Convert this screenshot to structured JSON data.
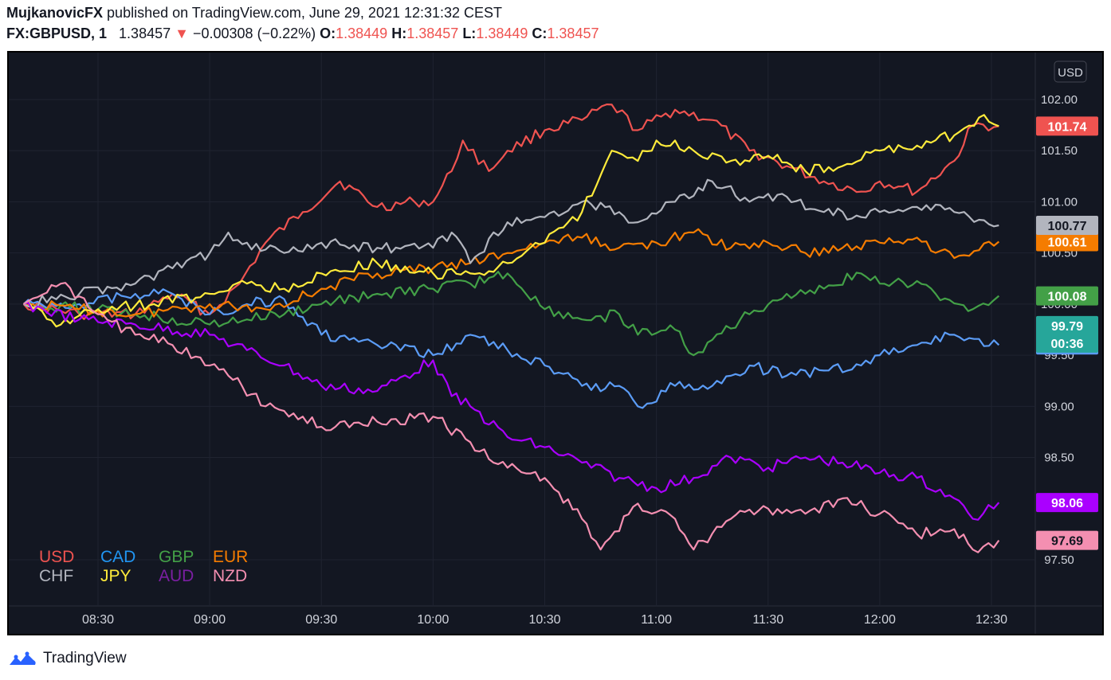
{
  "header": {
    "author": "MujkanovicFX",
    "published_text": "published on TradingView.com, June 29, 2021 12:31:32 CEST",
    "symbol": "FX:GBPUSD, 1",
    "price": "1.38457",
    "change": "−0.00308 (−0.22%)",
    "o_label": "O:",
    "o_value": "1.38449",
    "h_label": "H:",
    "h_value": "1.38457",
    "l_label": "L:",
    "l_value": "1.38449",
    "c_label": "C:",
    "c_value": "1.38457",
    "down_arrow_icon": "triangle-down-icon",
    "accent_red": "#ef5350"
  },
  "footer": {
    "brand": "TradingView",
    "logo_icon": "tradingview-cloud-icon",
    "logo_color": "#2962ff"
  },
  "chart_data": {
    "type": "line",
    "currency_label": "USD",
    "grid": true,
    "background": "#131722",
    "x_ticks": [
      "08:30",
      "09:00",
      "09:30",
      "10:00",
      "10:30",
      "11:00",
      "11:30",
      "12:00",
      "12:30"
    ],
    "y_ticks": [
      "102.00",
      "101.50",
      "101.00",
      "100.50",
      "100.00",
      "99.50",
      "99.00",
      "98.50",
      "97.50"
    ],
    "countdown": "00:36",
    "legend_placement": "bottom-left",
    "series": [
      {
        "name": "USD",
        "color": "#ef5350",
        "last_label": "101.74",
        "points": [
          [
            "08:10",
            100.0
          ],
          [
            "08:25",
            99.9
          ],
          [
            "08:40",
            99.9
          ],
          [
            "08:50",
            100.1
          ],
          [
            "09:00",
            99.9
          ],
          [
            "09:08",
            100.2
          ],
          [
            "09:15",
            100.6
          ],
          [
            "09:25",
            100.9
          ],
          [
            "09:35",
            101.2
          ],
          [
            "09:45",
            100.95
          ],
          [
            "09:55",
            101.0
          ],
          [
            "10:00",
            101.0
          ],
          [
            "10:05",
            101.3
          ],
          [
            "10:08",
            101.6
          ],
          [
            "10:15",
            101.3
          ],
          [
            "10:20",
            101.5
          ],
          [
            "10:30",
            101.7
          ],
          [
            "10:40",
            101.8
          ],
          [
            "10:48",
            101.95
          ],
          [
            "10:55",
            101.7
          ],
          [
            "11:05",
            101.9
          ],
          [
            "11:15",
            101.8
          ],
          [
            "11:25",
            101.5
          ],
          [
            "11:35",
            101.35
          ],
          [
            "11:45",
            101.2
          ],
          [
            "11:55",
            101.1
          ],
          [
            "12:00",
            101.2
          ],
          [
            "12:05",
            101.15
          ],
          [
            "12:10",
            101.1
          ],
          [
            "12:20",
            101.4
          ],
          [
            "12:25",
            101.75
          ],
          [
            "12:32",
            101.74
          ]
        ]
      },
      {
        "name": "CAD",
        "color": "#5b9cf6",
        "last_label": "99.60",
        "points": [
          [
            "08:10",
            100.0
          ],
          [
            "08:25",
            100.0
          ],
          [
            "08:40",
            100.1
          ],
          [
            "08:50",
            100.1
          ],
          [
            "09:00",
            99.9
          ],
          [
            "09:10",
            100.0
          ],
          [
            "09:20",
            100.05
          ],
          [
            "09:30",
            99.7
          ],
          [
            "09:45",
            99.6
          ],
          [
            "10:00",
            99.5
          ],
          [
            "10:10",
            99.7
          ],
          [
            "10:20",
            99.55
          ],
          [
            "10:30",
            99.4
          ],
          [
            "10:40",
            99.2
          ],
          [
            "10:50",
            99.2
          ],
          [
            "10:55",
            99.0
          ],
          [
            "11:05",
            99.2
          ],
          [
            "11:15",
            99.2
          ],
          [
            "11:25",
            99.4
          ],
          [
            "11:35",
            99.3
          ],
          [
            "11:45",
            99.35
          ],
          [
            "11:55",
            99.4
          ],
          [
            "12:00",
            99.5
          ],
          [
            "12:10",
            99.6
          ],
          [
            "12:20",
            99.7
          ],
          [
            "12:32",
            99.6
          ]
        ]
      },
      {
        "name": "GBP",
        "color": "#43a047",
        "last_label": "100.08",
        "points": [
          [
            "08:10",
            100.0
          ],
          [
            "08:30",
            99.95
          ],
          [
            "08:40",
            99.9
          ],
          [
            "09:00",
            99.8
          ],
          [
            "09:10",
            99.85
          ],
          [
            "09:20",
            99.9
          ],
          [
            "09:30",
            100.0
          ],
          [
            "09:45",
            100.1
          ],
          [
            "10:00",
            100.15
          ],
          [
            "10:10",
            100.2
          ],
          [
            "10:20",
            100.3
          ],
          [
            "10:30",
            99.95
          ],
          [
            "10:40",
            99.85
          ],
          [
            "10:50",
            99.9
          ],
          [
            "10:55",
            99.7
          ],
          [
            "11:05",
            99.75
          ],
          [
            "11:10",
            99.5
          ],
          [
            "11:15",
            99.65
          ],
          [
            "11:25",
            99.9
          ],
          [
            "11:35",
            100.1
          ],
          [
            "11:45",
            100.15
          ],
          [
            "11:55",
            100.3
          ],
          [
            "12:00",
            100.2
          ],
          [
            "12:05",
            100.25
          ],
          [
            "12:15",
            100.1
          ],
          [
            "12:25",
            99.95
          ],
          [
            "12:32",
            100.08
          ]
        ]
      },
      {
        "name": "EUR",
        "color": "#f57c00",
        "last_label": "100.61",
        "points": [
          [
            "08:10",
            100.0
          ],
          [
            "08:25",
            99.95
          ],
          [
            "08:40",
            99.9
          ],
          [
            "09:00",
            100.0
          ],
          [
            "09:15",
            99.95
          ],
          [
            "09:30",
            100.15
          ],
          [
            "09:45",
            100.3
          ],
          [
            "10:00",
            100.35
          ],
          [
            "10:10",
            100.4
          ],
          [
            "10:20",
            100.5
          ],
          [
            "10:30",
            100.6
          ],
          [
            "10:40",
            100.65
          ],
          [
            "10:50",
            100.55
          ],
          [
            "11:00",
            100.6
          ],
          [
            "11:10",
            100.7
          ],
          [
            "11:20",
            100.55
          ],
          [
            "11:30",
            100.6
          ],
          [
            "11:40",
            100.5
          ],
          [
            "11:50",
            100.55
          ],
          [
            "12:00",
            100.6
          ],
          [
            "12:10",
            100.65
          ],
          [
            "12:20",
            100.45
          ],
          [
            "12:32",
            100.61
          ]
        ]
      },
      {
        "name": "CHF",
        "color": "#b2b5be",
        "last_label": "100.77",
        "points": [
          [
            "08:10",
            100.0
          ],
          [
            "08:25",
            100.1
          ],
          [
            "08:40",
            100.2
          ],
          [
            "08:50",
            100.35
          ],
          [
            "09:00",
            100.5
          ],
          [
            "09:05",
            100.7
          ],
          [
            "09:10",
            100.6
          ],
          [
            "09:20",
            100.5
          ],
          [
            "09:30",
            100.6
          ],
          [
            "09:45",
            100.55
          ],
          [
            "10:00",
            100.55
          ],
          [
            "10:05",
            100.7
          ],
          [
            "10:10",
            100.4
          ],
          [
            "10:20",
            100.8
          ],
          [
            "10:30",
            100.85
          ],
          [
            "10:40",
            101.0
          ],
          [
            "10:50",
            100.9
          ],
          [
            "10:55",
            100.8
          ],
          [
            "11:05",
            101.0
          ],
          [
            "11:15",
            101.2
          ],
          [
            "11:25",
            101.0
          ],
          [
            "11:35",
            101.05
          ],
          [
            "11:45",
            100.9
          ],
          [
            "11:55",
            100.85
          ],
          [
            "12:00",
            100.9
          ],
          [
            "12:10",
            100.95
          ],
          [
            "12:20",
            100.9
          ],
          [
            "12:32",
            100.77
          ]
        ]
      },
      {
        "name": "JPY",
        "color": "#ffeb3b",
        "last_label": "",
        "points": [
          [
            "08:10",
            100.0
          ],
          [
            "08:20",
            99.8
          ],
          [
            "08:30",
            99.95
          ],
          [
            "08:45",
            100.0
          ],
          [
            "09:00",
            100.1
          ],
          [
            "09:10",
            100.2
          ],
          [
            "09:20",
            100.15
          ],
          [
            "09:30",
            100.3
          ],
          [
            "09:45",
            100.4
          ],
          [
            "10:00",
            100.3
          ],
          [
            "10:10",
            100.3
          ],
          [
            "10:20",
            100.4
          ],
          [
            "10:30",
            100.6
          ],
          [
            "10:40",
            100.9
          ],
          [
            "10:48",
            101.5
          ],
          [
            "10:55",
            101.4
          ],
          [
            "11:00",
            101.6
          ],
          [
            "11:10",
            101.5
          ],
          [
            "11:20",
            101.4
          ],
          [
            "11:30",
            101.45
          ],
          [
            "11:40",
            101.3
          ],
          [
            "11:50",
            101.35
          ],
          [
            "12:00",
            101.5
          ],
          [
            "12:10",
            101.55
          ],
          [
            "12:20",
            101.65
          ],
          [
            "12:28",
            101.85
          ],
          [
            "12:32",
            101.74
          ]
        ]
      },
      {
        "name": "AUD",
        "color": "#aa00ff",
        "last_label": "98.06",
        "points": [
          [
            "08:10",
            100.0
          ],
          [
            "08:25",
            99.85
          ],
          [
            "08:40",
            99.8
          ],
          [
            "09:00",
            99.7
          ],
          [
            "09:10",
            99.55
          ],
          [
            "09:20",
            99.4
          ],
          [
            "09:30",
            99.2
          ],
          [
            "09:45",
            99.15
          ],
          [
            "10:00",
            99.45
          ],
          [
            "10:05",
            99.1
          ],
          [
            "10:10",
            99.0
          ],
          [
            "10:20",
            98.7
          ],
          [
            "10:30",
            98.6
          ],
          [
            "10:40",
            98.45
          ],
          [
            "10:50",
            98.3
          ],
          [
            "11:00",
            98.2
          ],
          [
            "11:10",
            98.3
          ],
          [
            "11:20",
            98.5
          ],
          [
            "11:30",
            98.4
          ],
          [
            "11:40",
            98.5
          ],
          [
            "11:50",
            98.45
          ],
          [
            "12:00",
            98.35
          ],
          [
            "12:10",
            98.3
          ],
          [
            "12:20",
            98.1
          ],
          [
            "12:25",
            97.9
          ],
          [
            "12:32",
            98.06
          ]
        ]
      },
      {
        "name": "NZD",
        "color": "#f48fb1",
        "last_label": "97.69",
        "points": [
          [
            "08:10",
            100.0
          ],
          [
            "08:20",
            100.2
          ],
          [
            "08:30",
            99.9
          ],
          [
            "08:40",
            99.7
          ],
          [
            "08:50",
            99.6
          ],
          [
            "09:00",
            99.4
          ],
          [
            "09:05",
            99.3
          ],
          [
            "09:15",
            99.0
          ],
          [
            "09:25",
            98.9
          ],
          [
            "09:30",
            98.8
          ],
          [
            "09:45",
            98.85
          ],
          [
            "10:00",
            98.9
          ],
          [
            "10:10",
            98.65
          ],
          [
            "10:20",
            98.4
          ],
          [
            "10:30",
            98.3
          ],
          [
            "10:40",
            97.9
          ],
          [
            "10:45",
            97.6
          ],
          [
            "10:55",
            98.05
          ],
          [
            "11:05",
            97.9
          ],
          [
            "11:10",
            97.6
          ],
          [
            "11:20",
            97.9
          ],
          [
            "11:30",
            98.0
          ],
          [
            "11:40",
            97.95
          ],
          [
            "11:50",
            98.1
          ],
          [
            "12:00",
            97.95
          ],
          [
            "12:10",
            97.75
          ],
          [
            "12:20",
            97.8
          ],
          [
            "12:25",
            97.6
          ],
          [
            "12:32",
            97.69
          ]
        ]
      }
    ],
    "extra_labels": [
      {
        "text": "99.79",
        "color": "#26a69a"
      }
    ],
    "legend_rows": [
      [
        "USD",
        "CAD",
        "GBP",
        "EUR"
      ],
      [
        "CHF",
        "JPY",
        "AUD",
        "NZD"
      ]
    ],
    "legend_colors": {
      "USD": "#ef5350",
      "CAD": "#2196f3",
      "GBP": "#43a047",
      "EUR": "#f57c00",
      "CHF": "#b2b5be",
      "JPY": "#ffeb3b",
      "AUD": "#7b1fa2",
      "NZD": "#f48fb1"
    }
  }
}
